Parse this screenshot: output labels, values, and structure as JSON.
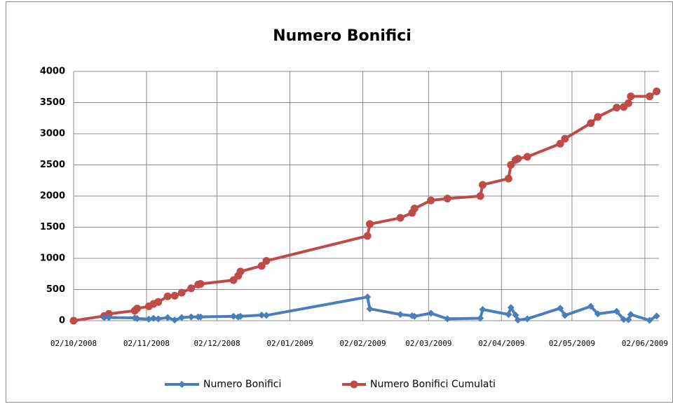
{
  "chart_data": {
    "type": "line",
    "title": "Numero Bonifici",
    "x": [
      "2008-10-02",
      "2008-10-15",
      "2008-10-17",
      "2008-10-28",
      "2008-10-29",
      "2008-11-03",
      "2008-11-05",
      "2008-11-07",
      "2008-11-11",
      "2008-11-14",
      "2008-11-17",
      "2008-11-21",
      "2008-11-24",
      "2008-11-25",
      "2008-12-09",
      "2008-12-11",
      "2008-12-12",
      "2008-12-21",
      "2008-12-23",
      "2009-02-04",
      "2009-02-05",
      "2009-02-18",
      "2009-02-23",
      "2009-02-24",
      "2009-03-03",
      "2009-03-10",
      "2009-03-24",
      "2009-03-25",
      "2009-04-05",
      "2009-04-06",
      "2009-04-08",
      "2009-04-09",
      "2009-04-13",
      "2009-04-27",
      "2009-04-29",
      "2009-05-10",
      "2009-05-13",
      "2009-05-21",
      "2009-05-24",
      "2009-05-26",
      "2009-05-27",
      "2009-06-04",
      "2009-06-07"
    ],
    "series": [
      {
        "name": "Numero Bonifici",
        "color": "#4a7ebb",
        "marker": "diamond",
        "values": [
          null,
          50,
          50,
          45,
          35,
          25,
          40,
          30,
          50,
          10,
          50,
          60,
          60,
          60,
          70,
          60,
          70,
          90,
          85,
          380,
          190,
          100,
          80,
          70,
          120,
          30,
          40,
          180,
          100,
          210,
          90,
          10,
          30,
          200,
          85,
          230,
          110,
          150,
          20,
          15,
          100,
          5,
          75
        ]
      },
      {
        "name": "Numero Bonifici Cumulati",
        "color": "#be4b48",
        "marker": "circle",
        "values": [
          0,
          75,
          110,
          160,
          195,
          230,
          270,
          300,
          390,
          400,
          450,
          520,
          580,
          590,
          650,
          720,
          790,
          880,
          960,
          1360,
          1550,
          1650,
          1730,
          1800,
          1930,
          1960,
          2000,
          2180,
          2280,
          2500,
          2580,
          2600,
          2630,
          2840,
          2920,
          3170,
          3270,
          3420,
          3430,
          3490,
          3600,
          3600,
          3680
        ]
      }
    ],
    "xlim": [
      "2008-10-02",
      "2009-06-08"
    ],
    "xticks": [
      {
        "value": "2008-10-02",
        "label": "02/10/2008"
      },
      {
        "value": "2008-11-02",
        "label": "02/11/2008"
      },
      {
        "value": "2008-12-02",
        "label": "02/12/2008"
      },
      {
        "value": "2009-01-02",
        "label": "02/01/2009"
      },
      {
        "value": "2009-02-02",
        "label": "02/02/2009"
      },
      {
        "value": "2009-03-02",
        "label": "02/03/2009"
      },
      {
        "value": "2009-04-02",
        "label": "02/04/2009"
      },
      {
        "value": "2009-05-02",
        "label": "02/05/2009"
      },
      {
        "value": "2009-06-02",
        "label": "02/06/2009"
      }
    ],
    "ylim": [
      0,
      4000
    ],
    "yticks": [
      0,
      500,
      1000,
      1500,
      2000,
      2500,
      3000,
      3500,
      4000
    ],
    "grid": true,
    "legend": "bottom"
  }
}
